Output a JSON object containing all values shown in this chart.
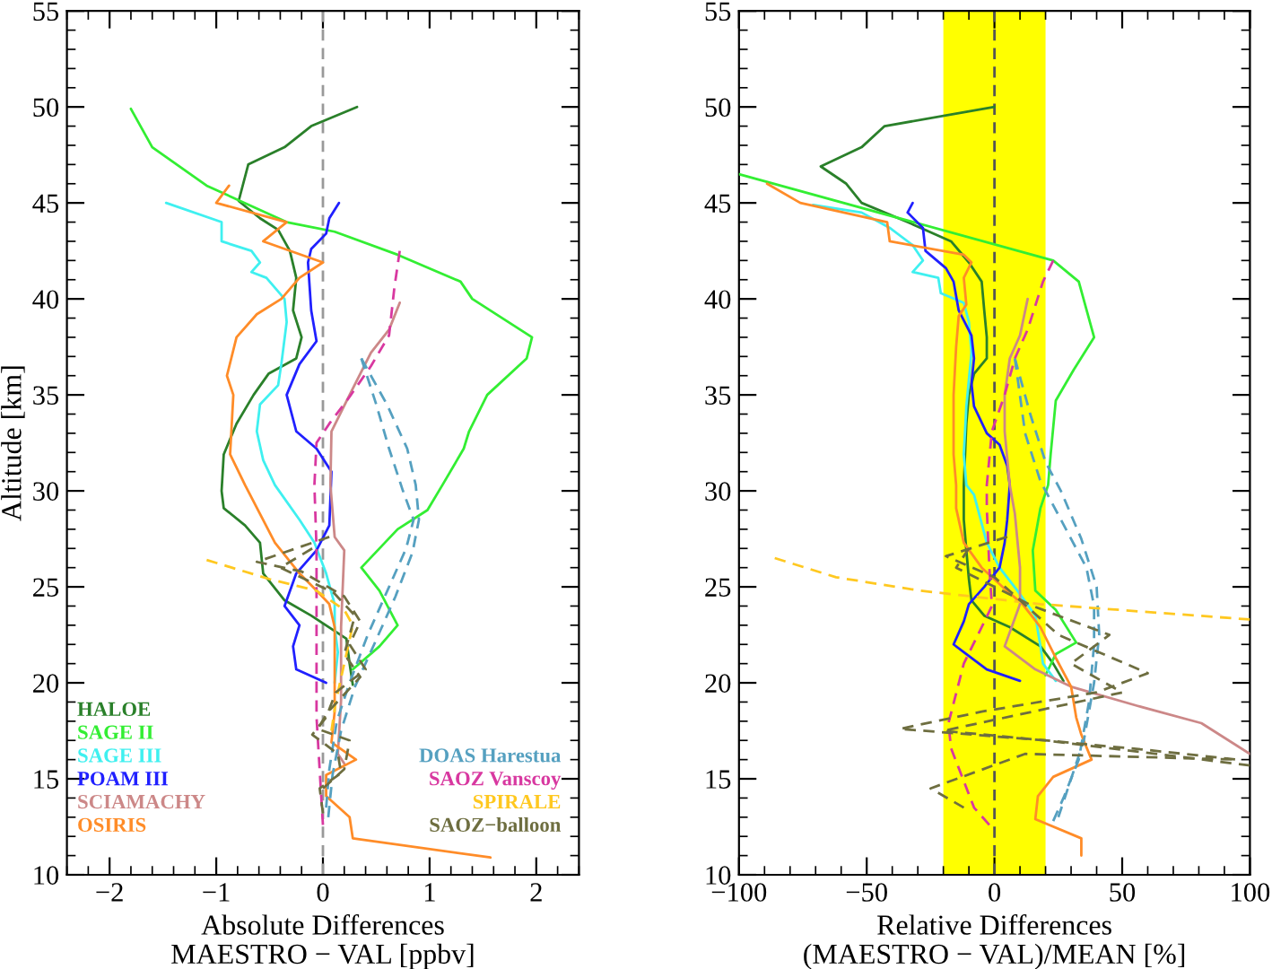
{
  "chart_data": [
    {
      "type": "line",
      "xlabel": "Absolute Differences\nMAESTRO − VAL [ppbv]",
      "ylabel": "Altitude [km]",
      "xlim": [
        -2.4,
        2.4
      ],
      "ylim": [
        10,
        55
      ],
      "xticks": [
        -2,
        -1,
        0,
        1,
        2
      ],
      "yticks": [
        10,
        15,
        20,
        25,
        30,
        35,
        40,
        45,
        50,
        55
      ],
      "legend": "bottom",
      "ref_lines": [
        {
          "axis": "x",
          "value": 0,
          "color": "#999999",
          "line_style": "dashed"
        }
      ],
      "series": [
        {
          "name": "HALOE",
          "color": "#2a802a",
          "line_style": "solid",
          "x": [
            0.32,
            -0.11,
            -0.36,
            -0.7,
            -0.79,
            -0.59,
            -0.42,
            -0.31,
            -0.25,
            -0.28,
            -0.2,
            -0.25,
            -0.51,
            -0.65,
            -0.81,
            -0.93,
            -0.95,
            -0.93,
            -0.73,
            -0.59,
            -0.56,
            -0.36,
            -0.11,
            0.22,
            0.25,
            0.28
          ],
          "values": [
            50,
            49,
            47.9,
            47,
            45.1,
            44.2,
            43.6,
            42.5,
            41.1,
            39.4,
            38,
            36.9,
            36.1,
            35,
            33.5,
            31.9,
            30,
            29.1,
            28.2,
            27.3,
            25.7,
            24.3,
            23.5,
            22.3,
            21,
            19.9
          ]
        },
        {
          "name": "SAGE II",
          "color": "#33ee33",
          "line_style": "solid",
          "x": [
            -1.8,
            -1.6,
            -1.09,
            -0.34,
            0.11,
            0.7,
            1.29,
            1.4,
            1.96,
            1.91,
            1.54,
            1.37,
            1.32,
            1.12,
            0.98,
            0.7,
            0.36,
            0.53,
            0.7,
            0.53,
            0.28
          ],
          "values": [
            49.9,
            47.9,
            45.9,
            44,
            43.5,
            42.3,
            40.9,
            40,
            38,
            36.9,
            35,
            33.1,
            32.2,
            30.3,
            29,
            28,
            26,
            24.8,
            23,
            21.9,
            20.7
          ]
        },
        {
          "name": "SAGE III",
          "color": "#3ff0f0",
          "line_style": "solid",
          "x": [
            -1.47,
            -0.95,
            -0.95,
            -0.67,
            -0.59,
            -0.67,
            -0.53,
            -0.36,
            -0.34,
            -0.39,
            -0.42,
            -0.59,
            -0.62,
            -0.56,
            -0.45,
            -0.22,
            -0.08,
            0.03,
            0.11,
            0.11,
            0.14,
            0.11
          ],
          "values": [
            45,
            44,
            43,
            42.5,
            41.9,
            41.4,
            41.1,
            40,
            38.8,
            36.6,
            35.5,
            34.5,
            33.1,
            31.6,
            30.3,
            28.5,
            27.3,
            25.7,
            24.1,
            22.9,
            21.6,
            20
          ]
        },
        {
          "name": "POAM III",
          "color": "#2020ff",
          "line_style": "solid",
          "x": [
            0.15,
            0.06,
            0.03,
            -0.11,
            -0.14,
            -0.11,
            -0.06,
            -0.22,
            -0.34,
            -0.25,
            -0.06,
            0.08,
            0.06,
            -0.06,
            -0.25,
            -0.36,
            -0.22,
            -0.28,
            -0.25,
            0.03
          ],
          "values": [
            45,
            44.2,
            43.4,
            42.6,
            41.9,
            39.4,
            37.8,
            36.6,
            35,
            33.1,
            32.2,
            31,
            28.2,
            26.9,
            25.7,
            24,
            23,
            21.9,
            20.7,
            20
          ]
        },
        {
          "name": "SCIAMACHY",
          "color": "#cc8888",
          "line_style": "solid",
          "x": [
            0.72,
            0.62,
            0.45,
            0.25,
            0.08,
            0.07,
            0.11,
            0.2,
            0.17,
            0.17,
            0.14,
            0.2
          ],
          "values": [
            39.8,
            38.4,
            37.2,
            35,
            33.1,
            30.3,
            27.6,
            26.9,
            22.9,
            19.1,
            16.3,
            15.8
          ]
        },
        {
          "name": "OSIRIS",
          "color": "#ff8c28",
          "line_style": "solid",
          "x": [
            -0.88,
            -1.0,
            -0.34,
            -0.56,
            0,
            -0.22,
            -0.39,
            -0.62,
            -0.81,
            -0.9,
            -0.84,
            -0.87,
            -0.73,
            -0.45,
            -0.22,
            -0.06,
            0.06,
            0.11,
            0.11,
            0.08,
            0.31,
            0.03,
            0.03,
            0.25,
            0.28,
            1.57
          ],
          "values": [
            45.9,
            45,
            44,
            43,
            41.9,
            41.1,
            40,
            39.2,
            38,
            36,
            35,
            31.9,
            30.3,
            27.3,
            25.7,
            24.8,
            24.1,
            22.9,
            18.5,
            16.9,
            16,
            15.2,
            14.1,
            13,
            11.9,
            10.9
          ]
        },
        {
          "name": "DOAS Harestua",
          "color": "#55a0c0",
          "line_style": "dashed",
          "x": [
            0.36,
            0.5,
            0.62,
            0.75,
            0.85,
            0.78,
            0.62,
            0.42,
            0.25,
            0.13,
            0.06,
            0.03
          ],
          "values": [
            36.9,
            34.5,
            32.2,
            30,
            28.5,
            27,
            25,
            22.5,
            20,
            18,
            15.5,
            13.5
          ]
        },
        {
          "color": "#55a0c0",
          "line_style": "dashed",
          "x": [
            0.36,
            0.6,
            0.79,
            0.87,
            0.9,
            0.84,
            0.68,
            0.48,
            0.3,
            0.17,
            0.09,
            0.05
          ],
          "values": [
            36.9,
            34.5,
            32.2,
            30.3,
            28.5,
            26.8,
            24.5,
            22,
            19.8,
            17.5,
            15.2,
            13
          ]
        },
        {
          "name": "SAOZ Vanscoy",
          "color": "#d838a0",
          "line_style": "dashed",
          "x": [
            0.72,
            0.67,
            0.62,
            0.45,
            0.25,
            0.06,
            -0.06,
            -0.08,
            -0.06,
            -0.06,
            -0.06,
            0
          ],
          "values": [
            42.5,
            40.6,
            38.1,
            36.5,
            34.9,
            33.5,
            32.5,
            30.3,
            27,
            22.9,
            18.2,
            12.6
          ]
        },
        {
          "name": "SPIRALE",
          "color": "#ffc820",
          "line_style": "dashed",
          "x": [
            -1.09,
            -0.5,
            -0.06,
            0.2,
            0.28,
            0.2,
            0.12,
            0.08
          ],
          "values": [
            26.4,
            25.4,
            24.8,
            23.8,
            23,
            21,
            19,
            17.5
          ]
        },
        {
          "name": "SAOZ−balloon",
          "color": "#6e6e40",
          "line_style": "dashed",
          "x": [
            0.06,
            -0.62,
            -0.2,
            0.2,
            0.35,
            0.25,
            0.4,
            0.12,
            0.03,
            -0.1,
            0.14,
            0.17,
            -0.03,
            0.0
          ],
          "values": [
            27.6,
            26.3,
            25.8,
            24.5,
            23.2,
            22,
            20.7,
            19.5,
            18.2,
            17.3,
            16.3,
            15.3,
            14.5,
            13.2
          ]
        },
        {
          "color": "#6e6e40",
          "line_style": "dashed",
          "x": [
            -0.1,
            -0.4,
            0.1,
            0.3,
            0.2,
            0.35,
            0.05,
            -0.05,
            0.25,
            0.2,
            0.0
          ],
          "values": [
            27,
            26,
            24.7,
            23.5,
            21.5,
            20.3,
            18.5,
            17.6,
            17,
            15.5,
            14.5
          ]
        }
      ]
    },
    {
      "type": "line",
      "xlabel": "Relative Differences\n(MAESTRO − VAL)/MEAN [%]",
      "xlim": [
        -100,
        100
      ],
      "ylim": [
        10,
        55
      ],
      "xticks": [
        -100,
        -50,
        0,
        50,
        100
      ],
      "yticks": [
        10,
        15,
        20,
        25,
        30,
        35,
        40,
        45,
        50,
        55
      ],
      "bands": [
        {
          "axis": "x",
          "from": -20,
          "to": 20,
          "color": "#ffff00"
        }
      ],
      "ref_lines": [
        {
          "axis": "x",
          "value": 0,
          "color": "#555555",
          "line_style": "dashed"
        }
      ],
      "series": [
        {
          "color": "#2a802a",
          "line_style": "solid",
          "x": [
            0,
            -43,
            -52,
            -68,
            -58,
            -52,
            -34,
            -17,
            -10,
            -5,
            -4,
            -3,
            -3,
            -8,
            -10,
            -11,
            -12,
            -12,
            -11,
            -10,
            -9,
            -4,
            6,
            18,
            23,
            27
          ],
          "values": [
            50,
            49,
            47.9,
            46.9,
            46,
            45,
            44,
            43,
            41.9,
            40.9,
            39.4,
            38,
            36.9,
            36.1,
            35,
            33.5,
            30.3,
            28.5,
            26.9,
            25.4,
            24.3,
            23.5,
            22.9,
            21.9,
            21,
            20.1
          ]
        },
        {
          "color": "#33ee33",
          "line_style": "solid",
          "x": [
            -100,
            23,
            33,
            39,
            31,
            24,
            22,
            21,
            18,
            15,
            16,
            24,
            32,
            24,
            20
          ],
          "values": [
            46.5,
            42,
            40.9,
            38,
            36.3,
            34.7,
            31.9,
            30.3,
            29.1,
            26.9,
            24.8,
            23.8,
            22.1,
            21.5,
            20.4
          ]
        },
        {
          "color": "#3ff0f0",
          "line_style": "solid",
          "x": [
            -71,
            -52,
            -41,
            -32,
            -28,
            -32,
            -22,
            -21,
            -12,
            -10,
            -9,
            -11,
            -12,
            -11,
            -8,
            -3,
            2,
            9,
            16,
            18,
            19,
            24
          ],
          "values": [
            44.9,
            44.5,
            43.7,
            42.8,
            42,
            41.4,
            41.1,
            40.3,
            39.8,
            38.8,
            37.2,
            34.4,
            31.9,
            30.3,
            29.8,
            27.3,
            26,
            24.8,
            23.5,
            21.9,
            21,
            20.1
          ]
        },
        {
          "color": "#2020ff",
          "line_style": "solid",
          "x": [
            -32,
            -34,
            -28,
            -27,
            -19,
            -16,
            -14,
            -9,
            -8,
            -9,
            -8,
            -3,
            2,
            5,
            6,
            5,
            4,
            2,
            -4,
            -10,
            -12,
            -16,
            -12,
            -3,
            10
          ],
          "values": [
            45,
            44.5,
            43.7,
            42.5,
            41.6,
            40.9,
            39.4,
            38.1,
            36.9,
            35.6,
            34.4,
            33,
            32.4,
            31.3,
            30.3,
            28.5,
            27.3,
            26,
            25,
            24.1,
            23.2,
            22,
            21.6,
            20.7,
            20.1
          ]
        },
        {
          "color": "#cc8888",
          "line_style": "solid",
          "x": [
            13,
            10,
            6,
            4,
            4,
            6,
            8,
            10,
            10,
            4,
            16,
            30,
            56,
            81,
            100
          ],
          "values": [
            40,
            38.1,
            36.9,
            35,
            33.1,
            30.3,
            28.8,
            26,
            24.1,
            21.9,
            20.7,
            19.8,
            18.8,
            17.9,
            16.3
          ]
        },
        {
          "color": "#ff8c28",
          "line_style": "solid",
          "x": [
            -89,
            -76,
            -42,
            -41,
            -12,
            -9,
            -12,
            -11,
            -14,
            -15,
            -16,
            -16,
            -15,
            -15,
            -12,
            -5,
            4,
            11,
            18,
            24,
            30,
            32,
            34,
            38,
            23,
            17,
            16,
            34,
            34
          ],
          "values": [
            46,
            45,
            44,
            43,
            42.3,
            41.9,
            41.1,
            39.7,
            39.1,
            37.5,
            35,
            31.9,
            30.3,
            29.1,
            27.3,
            26,
            24.9,
            24.1,
            22.9,
            21.3,
            19.8,
            18.2,
            17.3,
            16,
            15.1,
            14.1,
            12.9,
            11.9,
            11
          ]
        },
        {
          "color": "#55a0c0",
          "line_style": "dashed",
          "x": [
            8,
            12,
            18,
            28,
            36,
            39,
            39,
            37,
            33,
            27,
            23
          ],
          "values": [
            36.9,
            33,
            30.5,
            28,
            26,
            24,
            22,
            19,
            16,
            14,
            12.8
          ]
        },
        {
          "color": "#55a0c0",
          "line_style": "dashed",
          "x": [
            8,
            14,
            20,
            26,
            34,
            40,
            41,
            39,
            35,
            30,
            25
          ],
          "values": [
            36.9,
            34,
            31.5,
            30,
            27.5,
            25,
            22.5,
            20,
            17,
            15,
            13
          ]
        },
        {
          "color": "#d838a0",
          "line_style": "dashed",
          "x": [
            23,
            19,
            13,
            8,
            4,
            -1,
            -3,
            -3,
            -2,
            -1,
            -5,
            -12,
            -18,
            -17,
            -8,
            -2
          ],
          "values": [
            42,
            40.9,
            38.4,
            36.9,
            35,
            33.1,
            30.3,
            29.1,
            26,
            24,
            22.9,
            21,
            17.9,
            16.6,
            13.5,
            12.6
          ]
        },
        {
          "color": "#ffc820",
          "line_style": "dashed",
          "x": [
            -86,
            -62,
            -29,
            18,
            100
          ],
          "values": [
            26.5,
            25.5,
            24.8,
            24.1,
            23.3
          ]
        },
        {
          "color": "#6e6e40",
          "line_style": "dashed",
          "x": [
            5,
            -19,
            0,
            25,
            60,
            40,
            -5,
            -37,
            20,
            100
          ],
          "values": [
            27.6,
            26.6,
            25.5,
            22.5,
            20.5,
            19.5,
            18.5,
            17.6,
            17,
            15.7
          ]
        },
        {
          "color": "#6e6e40",
          "line_style": "dashed",
          "x": [
            -10,
            -15,
            15,
            45,
            30,
            50,
            -20,
            60,
            95,
            12,
            -25,
            -12
          ],
          "values": [
            27,
            26,
            24,
            22.5,
            21,
            19.5,
            17.5,
            16.5,
            16,
            16.3,
            14.5,
            13.5
          ]
        }
      ]
    }
  ]
}
